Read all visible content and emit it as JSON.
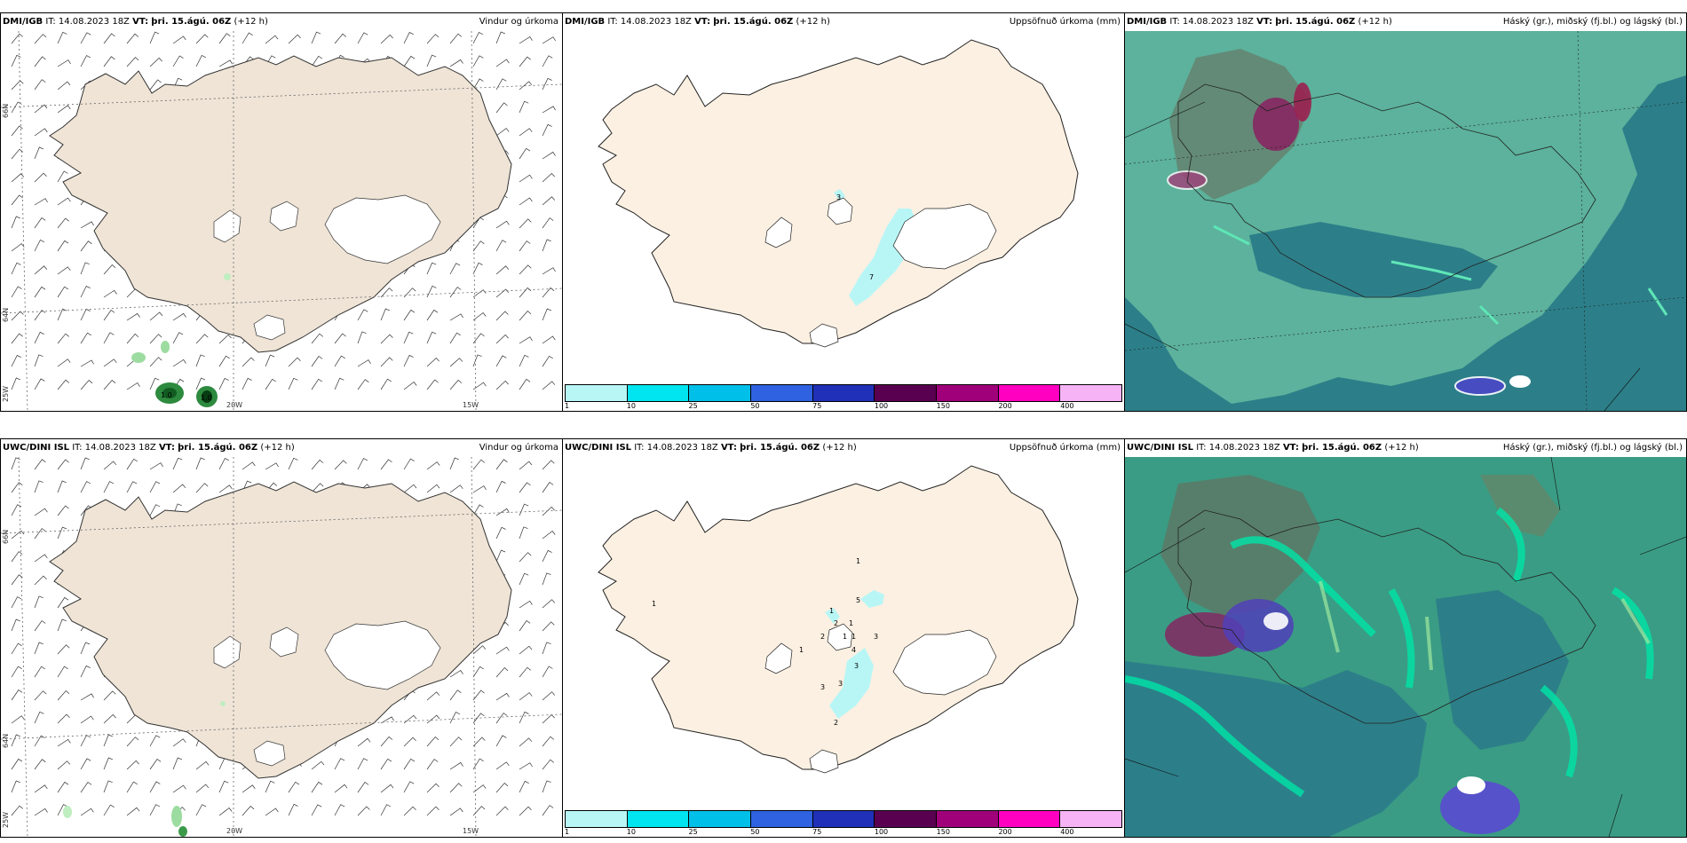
{
  "panels": [
    {
      "model": "DMI/IGB",
      "it_label": "IT:",
      "it": "14.08.2023 18Z",
      "vt_label": "VT:",
      "vt": "þri. 15.ágú. 06Z",
      "lead": "(+12 h)",
      "title": "Vindur og úrkoma"
    },
    {
      "model": "DMI/IGB",
      "it_label": "IT:",
      "it": "14.08.2023 18Z",
      "vt_label": "VT:",
      "vt": "þri. 15.ágú. 06Z",
      "lead": "(+12 h)",
      "title": "Uppsöfnuð úrkoma (mm)"
    },
    {
      "model": "DMI/IGB",
      "it_label": "IT:",
      "it": "14.08.2023 18Z",
      "vt_label": "VT:",
      "vt": "þri. 15.ágú. 06Z",
      "lead": "(+12 h)",
      "title": "Háský (gr.), miðský (fj.bl.) og lágský (bl.)"
    },
    {
      "model": "UWC/DINI ISL",
      "it_label": "IT:",
      "it": "14.08.2023 18Z",
      "vt_label": "VT:",
      "vt": "þri. 15.ágú. 06Z",
      "lead": "(+12 h)",
      "title": "Vindur og úrkoma"
    },
    {
      "model": "UWC/DINI ISL",
      "it_label": "IT:",
      "it": "14.08.2023 18Z",
      "vt_label": "VT:",
      "vt": "þri. 15.ágú. 06Z",
      "lead": "(+12 h)",
      "title": "Uppsöfnuð úrkoma (mm)"
    },
    {
      "model": "UWC/DINI ISL",
      "it_label": "IT:",
      "it": "14.08.2023 18Z",
      "vt_label": "VT:",
      "vt": "þri. 15.ágú. 06Z",
      "lead": "(+12 h)",
      "title": "Háský (gr.), miðský (fj.bl.) og lágský (bl.)"
    }
  ],
  "grid_labels": {
    "lat66": "66N",
    "lat64": "64N",
    "lon25": "25W",
    "lon20": "20W",
    "lon15": "15W"
  },
  "wind_precip_dmi": [
    "1.0",
    "1.0"
  ],
  "precip_labels_dmi": [
    "3",
    "7"
  ],
  "precip_labels_uwc": [
    "1",
    "5",
    "1",
    "2",
    "1",
    "2",
    "1",
    "1",
    "1",
    "4",
    "3",
    "3",
    "3",
    "3",
    "2",
    "1"
  ],
  "colorbar": {
    "labels": [
      "1",
      "10",
      "25",
      "50",
      "75",
      "100",
      "150",
      "200",
      "400"
    ],
    "colors": [
      "#b8f6f6",
      "#00e5ef",
      "#00bfe8",
      "#2f62e0",
      "#2030b8",
      "#5a0050",
      "#a0007a",
      "#ff00c0",
      "#f6b4f6"
    ]
  },
  "colors": {
    "land_wind": "#efe4d6",
    "land_precip": "#fcf0e2",
    "ocean_cloud": "#2c7f89",
    "cloud_mid": "#5fb59d"
  }
}
